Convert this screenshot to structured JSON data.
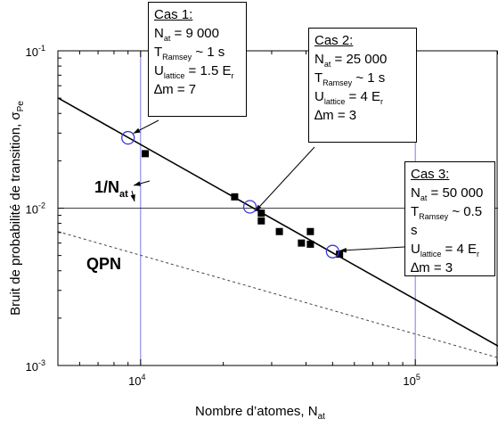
{
  "chart_data": {
    "type": "scatter",
    "xlabel_main": "Nombre d’atomes, N",
    "xlabel_sub": "at",
    "ylabel_main": "Bruit de probabilité de transition, σ",
    "ylabel_sub": "Pe",
    "x_scale": "log",
    "y_scale": "log",
    "xlim": [
      5000,
      200000
    ],
    "ylim": [
      0.001,
      0.1
    ],
    "x_ticks": [
      {
        "value": 10000,
        "mantissa": "10",
        "exp": "4"
      },
      {
        "value": 100000,
        "mantissa": "10",
        "exp": "5"
      }
    ],
    "y_ticks": [
      {
        "value": 0.001,
        "mantissa": "10",
        "exp": "-3"
      },
      {
        "value": 0.01,
        "mantissa": "10",
        "exp": "-2"
      },
      {
        "value": 0.1,
        "mantissa": "10",
        "exp": "-1"
      }
    ],
    "reference_lines": {
      "x": [
        10000,
        100000
      ],
      "y": [
        0.01
      ]
    },
    "series": [
      {
        "kind": "markers",
        "points": [
          [
            10400,
            0.0222
          ],
          [
            22000,
            0.0118
          ],
          [
            27500,
            0.0093
          ],
          [
            27500,
            0.0083
          ],
          [
            32000,
            0.0071
          ],
          [
            38500,
            0.006
          ],
          [
            41500,
            0.0059
          ],
          [
            41500,
            0.0071
          ],
          [
            53000,
            0.0051
          ]
        ]
      },
      {
        "kind": "fit_line",
        "label_main": "1/N",
        "label_sub": "at",
        "points": [
          [
            5000,
            0.0502
          ],
          [
            200000,
            0.00133
          ]
        ]
      },
      {
        "kind": "dashed_line",
        "label": "QPN",
        "points": [
          [
            5000,
            0.0071
          ],
          [
            200000,
            0.00112
          ]
        ]
      }
    ],
    "highlighted_cases": [
      {
        "x": 9000,
        "y": 0.028
      },
      {
        "x": 25000,
        "y": 0.0102
      },
      {
        "x": 50000,
        "y": 0.0053
      }
    ]
  },
  "annotations": [
    {
      "title": "Cas 1:",
      "lines": [
        {
          "main": "N",
          "sub": "at",
          "rest": " = 9 000"
        },
        {
          "main": "T",
          "sub": "Ramsey",
          "rest": " ~ 1 s"
        },
        {
          "main": "U",
          "sub": "lattice",
          "rest": " = 1.5 E",
          "sub2": "r"
        },
        {
          "main": "∆m = 7",
          "sub": "",
          "rest": ""
        }
      ]
    },
    {
      "title": "Cas 2:",
      "lines": [
        {
          "main": "N",
          "sub": "at",
          "rest": " = 25 000"
        },
        {
          "main": "T",
          "sub": "Ramsey",
          "rest": " ~ 1 s"
        },
        {
          "main": "U",
          "sub": "lattice",
          "rest": " = 4 E",
          "sub2": "r"
        },
        {
          "main": "∆m = 3",
          "sub": "",
          "rest": ""
        }
      ]
    },
    {
      "title": "Cas 3:",
      "lines": [
        {
          "main": "N",
          "sub": "at",
          "rest": " = 50 000"
        },
        {
          "main": "T",
          "sub": "Ramsey",
          "rest": " ~ 0.5 s"
        },
        {
          "main": "U",
          "sub": "lattice",
          "rest": " = 4 E",
          "sub2": "r"
        },
        {
          "main": "∆m = 3",
          "sub": "",
          "rest": ""
        }
      ]
    }
  ],
  "colors": {
    "axis": "#000000",
    "reference": "#7a7ae8",
    "circle": "#3a3ad8",
    "marker": "#000000",
    "dashed": "#444444"
  }
}
